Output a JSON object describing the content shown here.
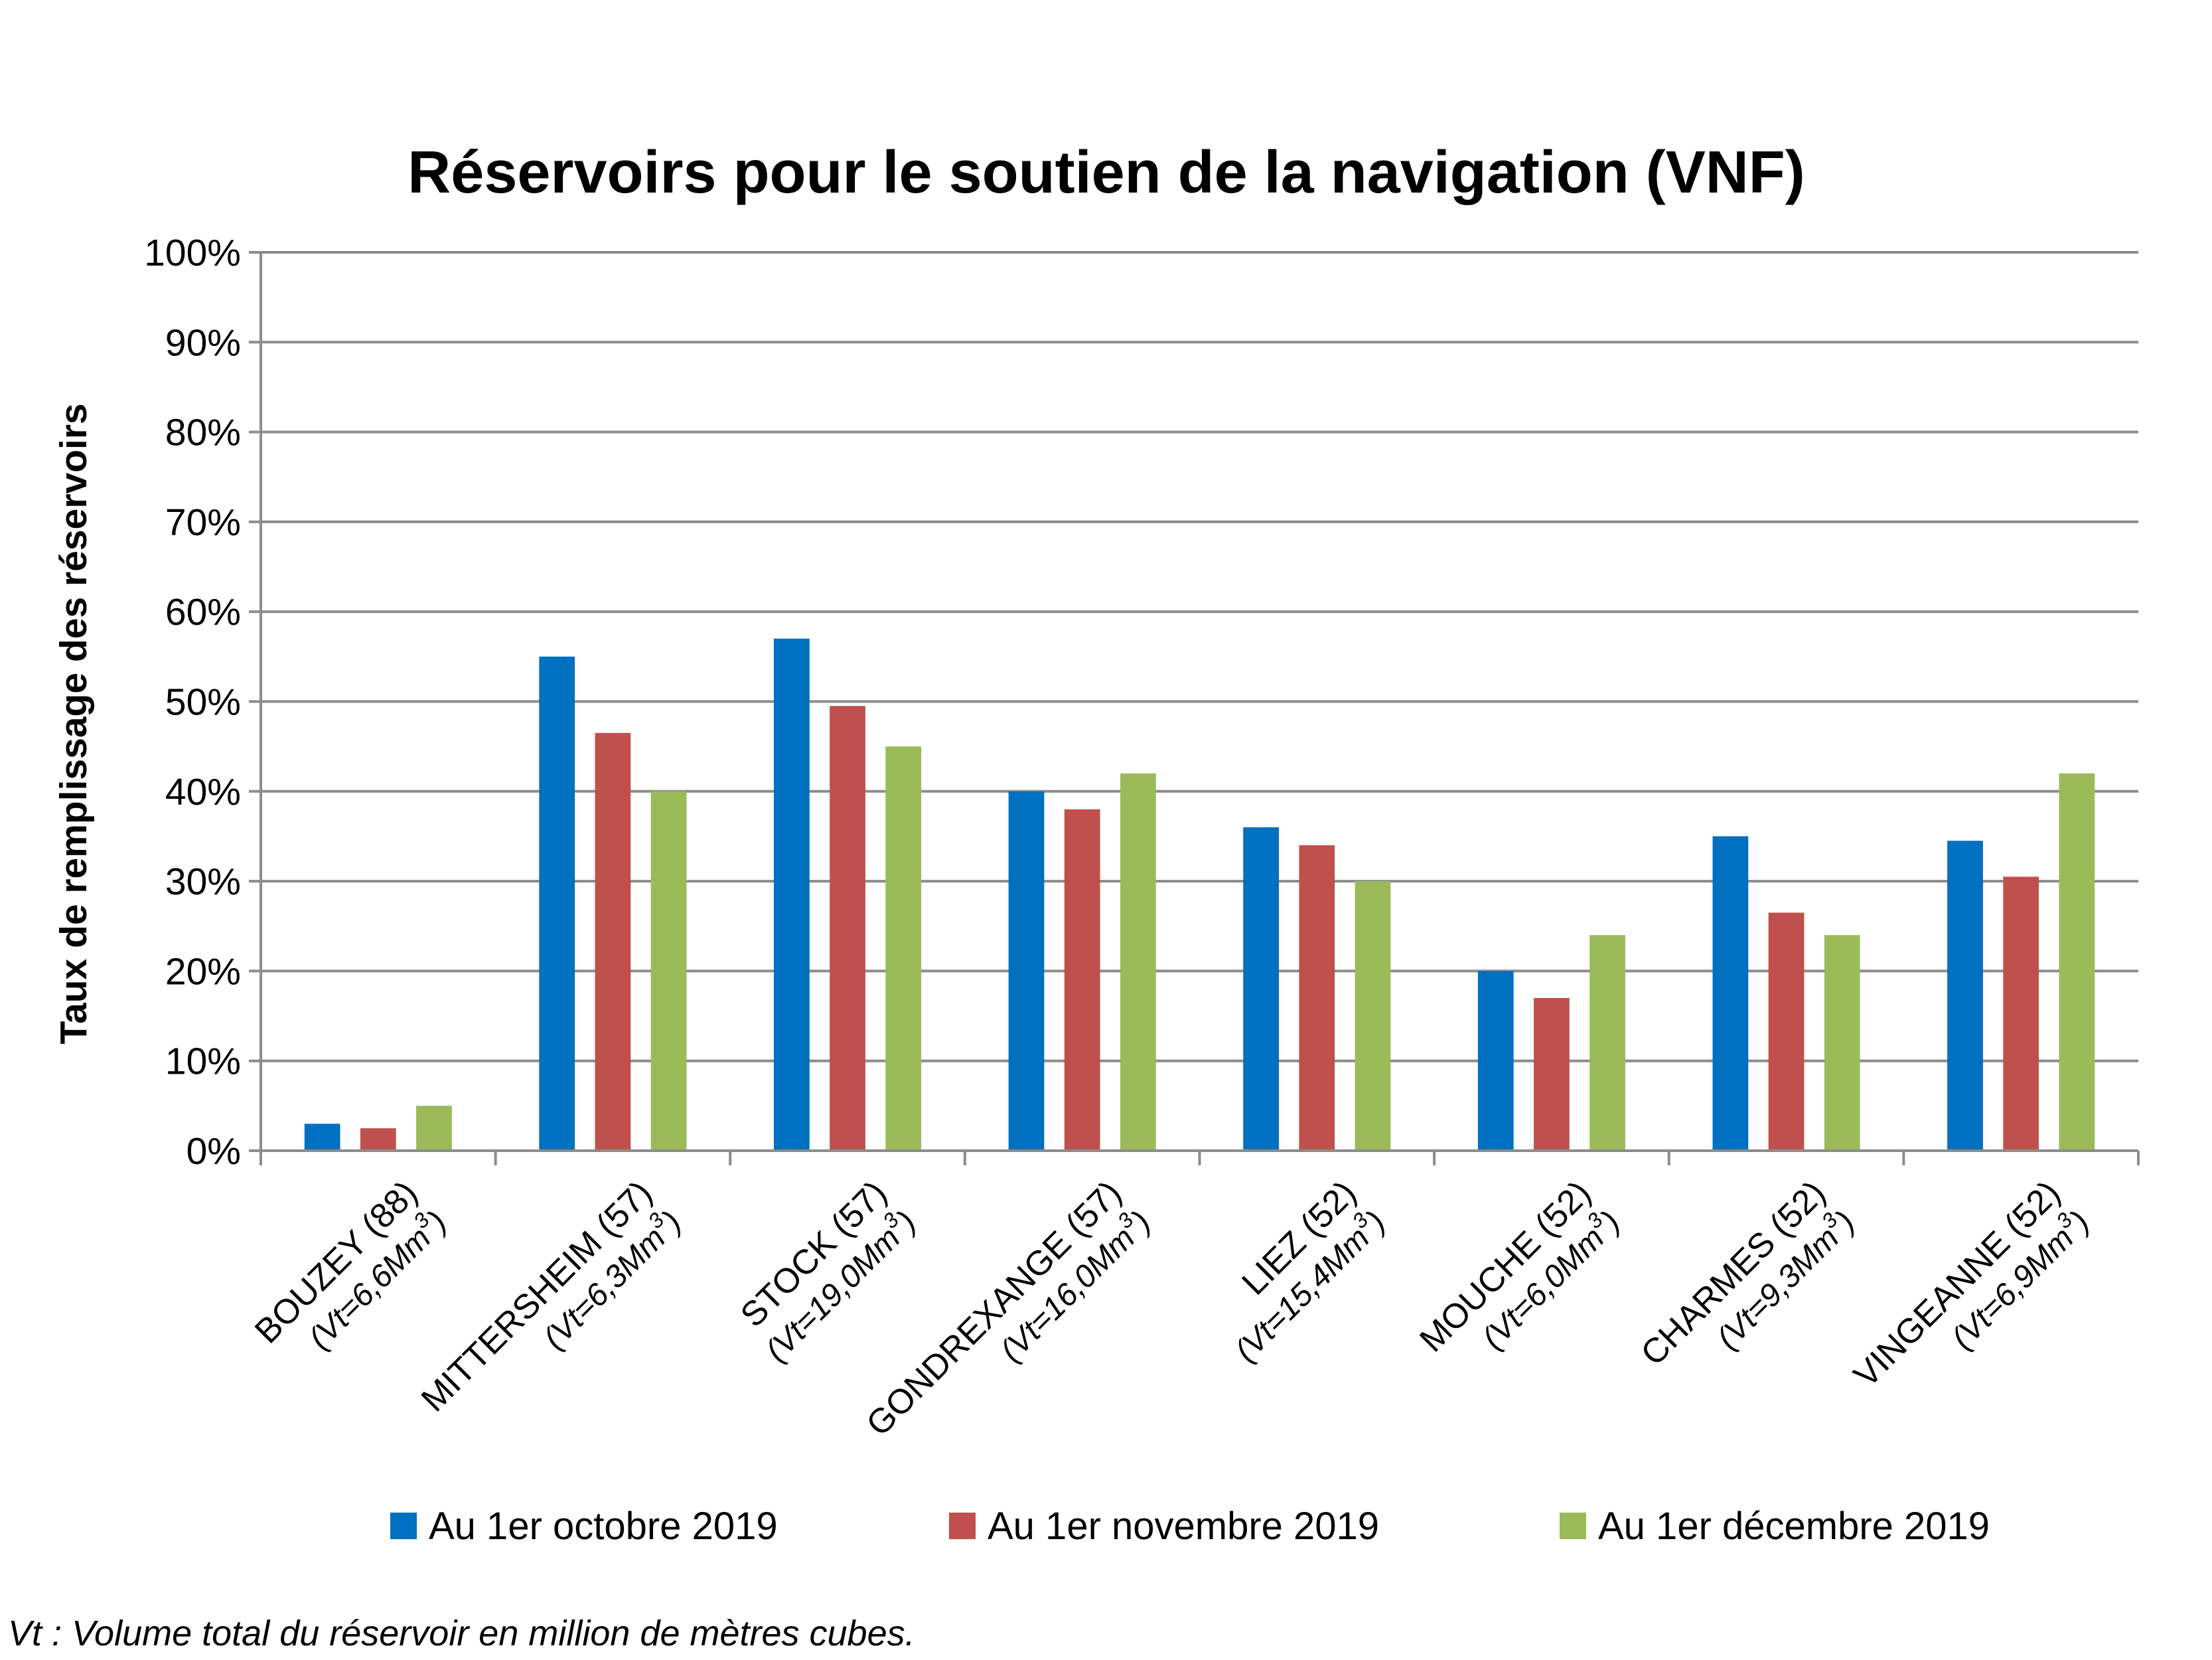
{
  "chart_data": {
    "type": "bar",
    "title": "Réservoirs pour le soutien de la navigation (VNF)",
    "ylabel": "Taux de remplissage des réservoirs",
    "xlabel": "",
    "ylim": [
      0,
      100
    ],
    "y_ticks": [
      "0%",
      "10%",
      "20%",
      "30%",
      "40%",
      "50%",
      "60%",
      "70%",
      "80%",
      "90%",
      "100%"
    ],
    "y_tick_values": [
      0,
      10,
      20,
      30,
      40,
      50,
      60,
      70,
      80,
      90,
      100
    ],
    "grid": true,
    "legend_position": "bottom",
    "categories": [
      {
        "name": "BOUZEY (88)",
        "volume": "(Vt=6,6Mm",
        "unit_exp": "3",
        "close": ")"
      },
      {
        "name": "MITTERSHEIM (57)",
        "volume": "(Vt=6,3Mm",
        "unit_exp": "3",
        "close": ")"
      },
      {
        "name": "STOCK (57)",
        "volume": "(Vt=19,0Mm",
        "unit_exp": "3",
        "close": ")"
      },
      {
        "name": "GONDREXANGE (57)",
        "volume": "(Vt=16,0Mm",
        "unit_exp": "3",
        "close": ")"
      },
      {
        "name": "LIEZ (52)",
        "volume": "(Vt=15,4Mm",
        "unit_exp": "3",
        "close": ")"
      },
      {
        "name": "MOUCHE (52)",
        "volume": "(Vt=6,0Mm",
        "unit_exp": "3",
        "close": ")"
      },
      {
        "name": "CHARMES (52)",
        "volume": "(Vt=9,3Mm",
        "unit_exp": "3",
        "close": ")"
      },
      {
        "name": "VINGEANNE (52)",
        "volume": "(Vt=6,9Mm",
        "unit_exp": "3",
        "close": ")"
      }
    ],
    "series": [
      {
        "name": "Au 1er octobre 2019",
        "color": "#0070c0",
        "values": [
          3,
          55,
          57,
          40,
          36,
          20,
          35,
          34.5
        ]
      },
      {
        "name": "Au 1er novembre 2019",
        "color": "#c0504d",
        "values": [
          2.5,
          46.5,
          49.5,
          38,
          34,
          17,
          26.5,
          30.5
        ]
      },
      {
        "name": "Au 1er décembre 2019",
        "color": "#9bbb59",
        "values": [
          5,
          40,
          45,
          42,
          30,
          24,
          24,
          42
        ]
      }
    ]
  },
  "footnote": "Vt : Volume total du réservoir en million de mètres cubes.",
  "colors": {
    "grid": "#8c8c8c",
    "text": "#000000"
  }
}
